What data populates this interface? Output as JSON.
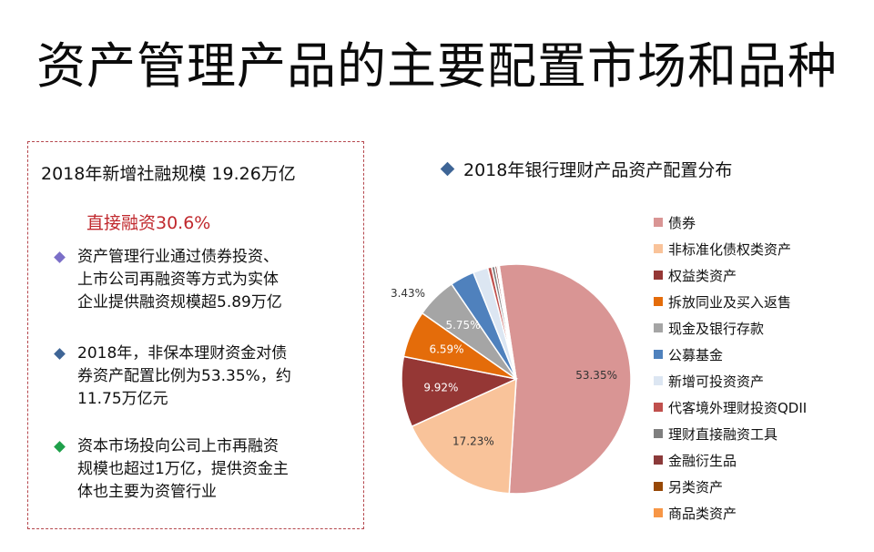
{
  "title": "资产管理产品的主要配置市场和品种",
  "left": {
    "header": "2018年新增社融规模 19.26万亿",
    "direct": "直接融资30.6%",
    "bullets": [
      {
        "lines": [
          "资产管理行业通过债券投资、",
          "上市公司再融资等方式为实体",
          "企业提供融资规模超5.89万亿"
        ],
        "color": "#7b6fc8"
      },
      {
        "lines": [
          "2018年，非保本理财资金对债",
          "券资产配置比例为53.35%，约",
          "11.75万亿元"
        ],
        "color": "#3e6596"
      },
      {
        "lines": [
          "资本市场投向公司上市再融资",
          "规模也超过1万亿，提供资金主",
          "体也主要为资管行业"
        ],
        "color": "#1fa04a"
      }
    ]
  },
  "chart_data": {
    "type": "pie",
    "title": "2018年银行理财产品资产配置分布",
    "legend_position": "right",
    "slices": [
      {
        "name": "债券",
        "value": 53.35,
        "label": "53.35%",
        "color": "#d99594"
      },
      {
        "name": "非标准化债权类资产",
        "value": 17.23,
        "label": "17.23%",
        "color": "#f9c39a"
      },
      {
        "name": "权益类资产",
        "value": 9.92,
        "label": "9.92%",
        "color": "#953735"
      },
      {
        "name": "拆放同业及买入返售",
        "value": 6.59,
        "label": "6.59%",
        "color": "#e46c0a"
      },
      {
        "name": "现金及银行存款",
        "value": 5.75,
        "label": "5.75%",
        "color": "#a5a5a5"
      },
      {
        "name": "公募基金",
        "value": 3.43,
        "label": "3.43%",
        "color": "#4f81bd"
      },
      {
        "name": "新增可投资资产",
        "value": 2.1,
        "label": "",
        "color": "#dce6f2"
      },
      {
        "name": "代客境外理财投资QDII",
        "value": 0.55,
        "label": "",
        "color": "#c0504d"
      },
      {
        "name": "理财直接融资工具",
        "value": 0.45,
        "label": "",
        "color": "#7f7f7f"
      },
      {
        "name": "金融衍生品",
        "value": 0.3,
        "label": "",
        "color": "#8b3a3a"
      },
      {
        "name": "另类资产",
        "value": 0.2,
        "label": "",
        "color": "#974806"
      },
      {
        "name": "商品类资产",
        "value": 0.13,
        "label": "",
        "color": "#f79646"
      }
    ]
  }
}
